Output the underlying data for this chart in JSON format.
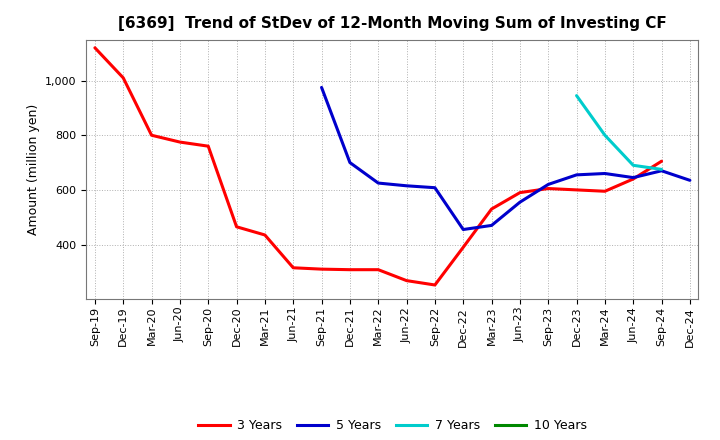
{
  "title": "[6369]  Trend of StDev of 12-Month Moving Sum of Investing CF",
  "ylabel": "Amount (million yen)",
  "background_color": "#ffffff",
  "grid_color": "#b0b0b0",
  "x_labels": [
    "Sep-19",
    "Dec-19",
    "Mar-20",
    "Jun-20",
    "Sep-20",
    "Dec-20",
    "Mar-21",
    "Jun-21",
    "Sep-21",
    "Dec-21",
    "Mar-22",
    "Jun-22",
    "Sep-22",
    "Dec-22",
    "Mar-23",
    "Jun-23",
    "Sep-23",
    "Dec-23",
    "Mar-24",
    "Jun-24",
    "Sep-24",
    "Dec-24"
  ],
  "series": {
    "3 Years": {
      "color": "#ff0000",
      "data": [
        1120,
        1010,
        800,
        775,
        760,
        465,
        435,
        315,
        310,
        308,
        308,
        268,
        252,
        390,
        530,
        590,
        605,
        600,
        595,
        640,
        705,
        null
      ]
    },
    "5 Years": {
      "color": "#0000cc",
      "data": [
        null,
        null,
        null,
        null,
        null,
        null,
        null,
        null,
        975,
        700,
        625,
        615,
        608,
        455,
        470,
        555,
        620,
        655,
        660,
        645,
        670,
        635
      ]
    },
    "7 Years": {
      "color": "#00cccc",
      "data": [
        null,
        null,
        null,
        null,
        null,
        null,
        null,
        null,
        null,
        null,
        null,
        null,
        null,
        null,
        null,
        null,
        null,
        945,
        800,
        690,
        675,
        null
      ]
    },
    "10 Years": {
      "color": "#008800",
      "data": [
        null,
        null,
        null,
        null,
        null,
        null,
        null,
        null,
        null,
        null,
        null,
        null,
        null,
        null,
        null,
        null,
        null,
        null,
        null,
        null,
        null,
        null
      ]
    }
  },
  "ylim": [
    200,
    1150
  ],
  "yticks": [
    400,
    600,
    800,
    1000
  ],
  "legend_order": [
    "3 Years",
    "5 Years",
    "7 Years",
    "10 Years"
  ],
  "linewidth": 2.2,
  "title_fontsize": 11,
  "tick_fontsize": 8,
  "ylabel_fontsize": 9
}
